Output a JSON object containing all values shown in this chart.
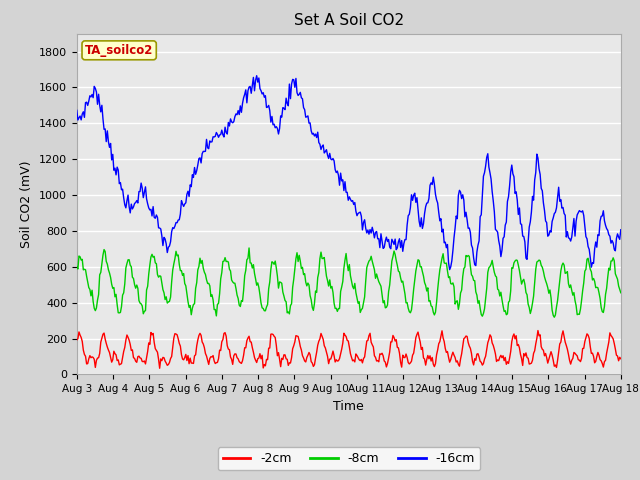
{
  "title": "Set A Soil CO2",
  "xlabel": "Time",
  "ylabel": "Soil CO2 (mV)",
  "ylim": [
    0,
    1900
  ],
  "yticks": [
    0,
    200,
    400,
    600,
    800,
    1000,
    1200,
    1400,
    1600,
    1800
  ],
  "x_labels": [
    "Aug 3",
    "Aug 4",
    "Aug 5",
    "Aug 6",
    "Aug 7",
    "Aug 8",
    "Aug 9",
    "Aug 10",
    "Aug 11",
    "Aug 12",
    "Aug 13",
    "Aug 14",
    "Aug 15",
    "Aug 16",
    "Aug 17",
    "Aug 18"
  ],
  "series": {
    "2cm": {
      "color": "#ff0000",
      "label": "-2cm"
    },
    "8cm": {
      "color": "#00cc00",
      "label": "-8cm"
    },
    "16cm": {
      "color": "#0000ff",
      "label": "-16cm"
    }
  },
  "legend_label": "TA_soilco2",
  "legend_box_facecolor": "#ffffcc",
  "legend_box_edgecolor": "#999900",
  "legend_text_color": "#cc0000",
  "plot_bg": "#e8e8e8",
  "fig_bg": "#d4d4d4",
  "grid_color": "#ffffff",
  "n_days": 15,
  "n_pts": 500
}
